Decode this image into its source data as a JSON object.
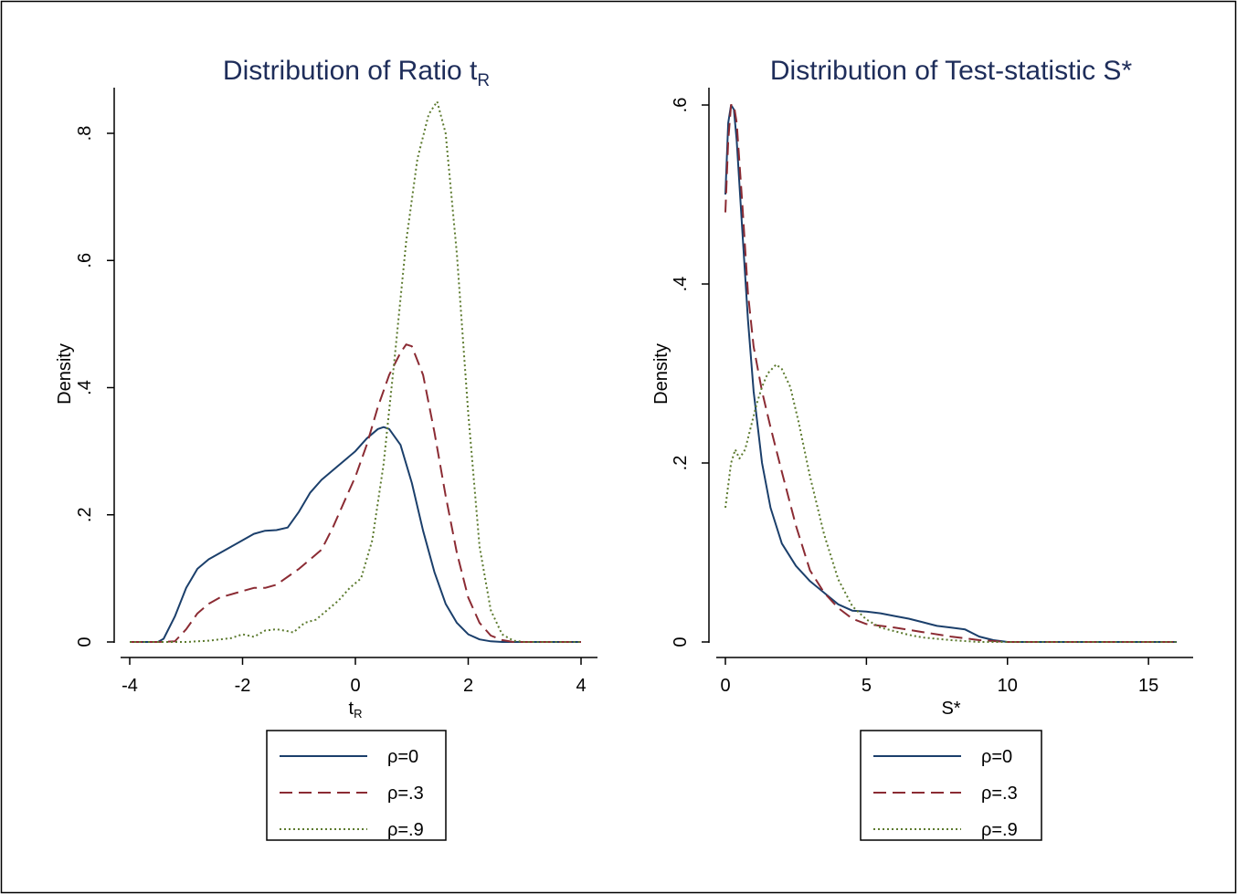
{
  "chart_data": [
    {
      "type": "line",
      "title": {
        "main": "Distribution of Ratio t",
        "sub": "R"
      },
      "xlabel": {
        "main": "t",
        "sub": "R"
      },
      "ylabel": "Density",
      "xlim": [
        -4,
        4
      ],
      "ylim": [
        0,
        0.87
      ],
      "xticks": [
        -4,
        -2,
        0,
        2,
        4
      ],
      "xtick_labels": [
        "-4",
        "-2",
        "0",
        "2",
        "4"
      ],
      "yticks": [
        0,
        0.2,
        0.4,
        0.6,
        0.8
      ],
      "ytick_labels": [
        "0",
        ".2",
        ".4",
        ".6",
        ".8"
      ],
      "grid": false,
      "legend": {
        "placement": "bottom",
        "entries": [
          "ρ=0",
          "ρ=.3",
          "ρ=.9"
        ]
      },
      "series": [
        {
          "name": "ρ=0",
          "color": "#1b3f6b",
          "dash": "solid",
          "x": [
            -4,
            -3.5,
            -3.4,
            -3.2,
            -3.0,
            -2.8,
            -2.6,
            -2.2,
            -2.0,
            -1.8,
            -1.6,
            -1.4,
            -1.2,
            -1.0,
            -0.8,
            -0.6,
            -0.4,
            -0.2,
            0.0,
            0.2,
            0.4,
            0.5,
            0.6,
            0.8,
            1.0,
            1.2,
            1.4,
            1.6,
            1.8,
            2.0,
            2.2,
            2.4,
            2.6,
            3.0,
            4.0
          ],
          "y": [
            0,
            0,
            0.005,
            0.04,
            0.085,
            0.115,
            0.13,
            0.15,
            0.16,
            0.17,
            0.175,
            0.176,
            0.18,
            0.205,
            0.235,
            0.255,
            0.27,
            0.285,
            0.3,
            0.32,
            0.335,
            0.338,
            0.335,
            0.31,
            0.25,
            0.175,
            0.11,
            0.06,
            0.03,
            0.012,
            0.004,
            0.001,
            0,
            0,
            0
          ]
        },
        {
          "name": "ρ=.3",
          "color": "#8b2b33",
          "dash": "long",
          "x": [
            -4,
            -3.5,
            -3.2,
            -3.0,
            -2.8,
            -2.6,
            -2.4,
            -2.0,
            -1.8,
            -1.6,
            -1.4,
            -1.0,
            -0.8,
            -0.6,
            -0.4,
            -0.2,
            0.0,
            0.2,
            0.4,
            0.6,
            0.8,
            0.9,
            1.0,
            1.2,
            1.4,
            1.6,
            1.8,
            2.0,
            2.2,
            2.4,
            2.6,
            2.8,
            4.0
          ],
          "y": [
            0,
            0,
            0.001,
            0.02,
            0.045,
            0.06,
            0.07,
            0.08,
            0.085,
            0.085,
            0.09,
            0.115,
            0.13,
            0.145,
            0.18,
            0.22,
            0.26,
            0.31,
            0.37,
            0.42,
            0.455,
            0.468,
            0.465,
            0.42,
            0.33,
            0.23,
            0.14,
            0.07,
            0.03,
            0.01,
            0.003,
            0,
            0
          ]
        },
        {
          "name": "ρ=.9",
          "color": "#5c7a2e",
          "dash": "dotted",
          "x": [
            -4,
            -3.0,
            -2.6,
            -2.2,
            -2.0,
            -1.8,
            -1.6,
            -1.4,
            -1.2,
            -1.1,
            -0.9,
            -0.7,
            -0.5,
            -0.3,
            -0.1,
            0.1,
            0.3,
            0.5,
            0.7,
            0.9,
            1.1,
            1.3,
            1.45,
            1.6,
            1.8,
            2.0,
            2.2,
            2.4,
            2.6,
            2.8,
            3.0,
            4.0
          ],
          "y": [
            0,
            0,
            0.002,
            0.006,
            0.012,
            0.008,
            0.018,
            0.02,
            0.017,
            0.015,
            0.03,
            0.035,
            0.05,
            0.065,
            0.085,
            0.1,
            0.16,
            0.28,
            0.45,
            0.63,
            0.76,
            0.83,
            0.85,
            0.8,
            0.61,
            0.36,
            0.15,
            0.05,
            0.012,
            0.002,
            0,
            0
          ]
        }
      ]
    },
    {
      "type": "line",
      "title": {
        "main": "Distribution of Test-statistic S*",
        "sub": ""
      },
      "xlabel": {
        "main": "S*",
        "sub": ""
      },
      "ylabel": "Density",
      "xlim": [
        0,
        16
      ],
      "ylim": [
        0,
        0.62
      ],
      "xticks": [
        0,
        5,
        10,
        15
      ],
      "xtick_labels": [
        "0",
        "5",
        "10",
        "15"
      ],
      "yticks": [
        0,
        0.2,
        0.4,
        0.6
      ],
      "ytick_labels": [
        "0",
        ".2",
        ".4",
        ".6"
      ],
      "grid": false,
      "legend": {
        "placement": "bottom",
        "entries": [
          "ρ=0",
          "ρ=.3",
          "ρ=.9"
        ]
      },
      "series": [
        {
          "name": "ρ=0",
          "color": "#1b3f6b",
          "dash": "solid",
          "x": [
            0,
            0.1,
            0.2,
            0.3,
            0.4,
            0.6,
            0.8,
            1.0,
            1.3,
            1.6,
            2.0,
            2.5,
            3.0,
            3.5,
            4.0,
            4.5,
            5.0,
            5.5,
            6.0,
            6.5,
            7.0,
            7.5,
            8.0,
            8.5,
            9.0,
            9.5,
            10.0,
            11.0,
            16.0
          ],
          "y": [
            0.5,
            0.58,
            0.6,
            0.595,
            0.56,
            0.46,
            0.36,
            0.28,
            0.2,
            0.15,
            0.11,
            0.085,
            0.068,
            0.055,
            0.042,
            0.035,
            0.034,
            0.032,
            0.029,
            0.026,
            0.022,
            0.018,
            0.016,
            0.014,
            0.006,
            0.002,
            0,
            0,
            0
          ]
        },
        {
          "name": "ρ=.3",
          "color": "#8b2b33",
          "dash": "long",
          "x": [
            0,
            0.1,
            0.2,
            0.3,
            0.4,
            0.6,
            0.8,
            1.0,
            1.3,
            1.6,
            2.0,
            2.5,
            3.0,
            3.5,
            4.0,
            4.5,
            5.0,
            6.0,
            7.0,
            8.0,
            9.0,
            10.0,
            16.0
          ],
          "y": [
            0.48,
            0.56,
            0.6,
            0.6,
            0.58,
            0.49,
            0.39,
            0.33,
            0.28,
            0.24,
            0.19,
            0.13,
            0.08,
            0.055,
            0.038,
            0.026,
            0.02,
            0.016,
            0.011,
            0.006,
            0.002,
            0,
            0
          ]
        },
        {
          "name": "ρ=.9",
          "color": "#5c7a2e",
          "dash": "dotted",
          "x": [
            0,
            0.2,
            0.35,
            0.5,
            0.7,
            0.9,
            1.1,
            1.3,
            1.5,
            1.8,
            2.0,
            2.3,
            2.6,
            3.0,
            3.5,
            4.0,
            4.5,
            5.0,
            5.5,
            6.0,
            6.5,
            7.0,
            8.0,
            9.0,
            10.0,
            16.0
          ],
          "y": [
            0.15,
            0.2,
            0.215,
            0.205,
            0.215,
            0.24,
            0.265,
            0.285,
            0.3,
            0.31,
            0.305,
            0.285,
            0.245,
            0.185,
            0.12,
            0.07,
            0.04,
            0.025,
            0.016,
            0.012,
            0.008,
            0.005,
            0.002,
            0,
            0,
            0
          ]
        }
      ]
    }
  ]
}
